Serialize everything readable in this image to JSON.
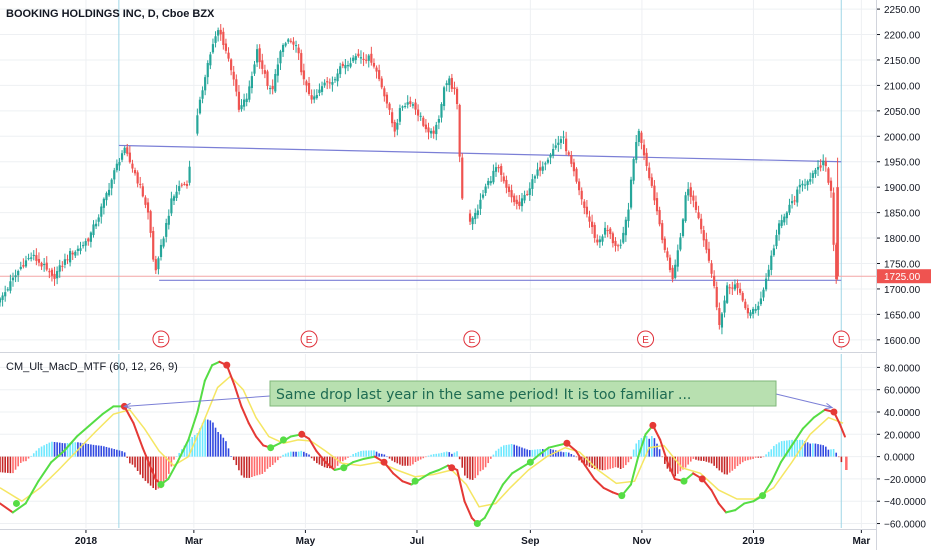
{
  "colors": {
    "up": "#26a69a",
    "down": "#ef5350",
    "grid": "#eef0f3",
    "trendline": "#7b7fd6",
    "macd_line_up": "#55dd44",
    "macd_line_down": "#e53935",
    "signal_line": "#f5e663",
    "hist_pos_light": "#6fe8ff",
    "hist_pos_dark": "#3048e0",
    "hist_neg_dark": "#c62828",
    "hist_neg_light": "#ff6b6b",
    "last_price_bg": "#ef5350",
    "note_bg": "#b8e0b0",
    "note_border": "#7fb77a",
    "earnings": "#e0303a"
  },
  "chart_data": [
    {
      "type": "candlestick",
      "title": "BOOKING HOLDINGS INC, D, Cboe BZX",
      "ylim": [
        1580,
        2260
      ],
      "y_ticks": [
        "2250.00",
        "2200.00",
        "2150.00",
        "2100.00",
        "2050.00",
        "2000.00",
        "1950.00",
        "1900.00",
        "1850.00",
        "1800.00",
        "1750.00",
        "1700.00",
        "1650.00",
        "1600.00"
      ],
      "y_tick_values": [
        2250,
        2200,
        2150,
        2100,
        2050,
        2000,
        1950,
        1900,
        1850,
        1800,
        1750,
        1700,
        1650,
        1600
      ],
      "last_price": "1725.00",
      "last_price_value": 1725,
      "x_labels": [
        "2018",
        "Mar",
        "May",
        "Jul",
        "Sep",
        "Nov",
        "2019",
        "Mar"
      ],
      "x_label_days": [
        0,
        59,
        120,
        181,
        243,
        304,
        365,
        424
      ],
      "x_range_days": [
        -47,
        432
      ],
      "price_path": [
        [
          -47,
          1670
        ],
        [
          -40,
          1710
        ],
        [
          -33,
          1750
        ],
        [
          -28,
          1765
        ],
        [
          -22,
          1745
        ],
        [
          -17,
          1720
        ],
        [
          -12,
          1745
        ],
        [
          -7,
          1770
        ],
        [
          -2,
          1780
        ],
        [
          3,
          1800
        ],
        [
          8,
          1840
        ],
        [
          13,
          1890
        ],
        [
          18,
          1940
        ],
        [
          22,
          1975
        ],
        [
          28,
          1930
        ],
        [
          33,
          1880
        ],
        [
          36,
          1840
        ],
        [
          38,
          1760
        ],
        [
          40,
          1735
        ],
        [
          43,
          1790
        ],
        [
          48,
          1870
        ],
        [
          52,
          1900
        ],
        [
          57,
          1910
        ],
        [
          61,
          2010
        ],
        [
          64,
          2070
        ],
        [
          67,
          2130
        ],
        [
          70,
          2170
        ],
        [
          74,
          2210
        ],
        [
          77,
          2180
        ],
        [
          82,
          2120
        ],
        [
          85,
          2050
        ],
        [
          90,
          2080
        ],
        [
          95,
          2170
        ],
        [
          99,
          2120
        ],
        [
          103,
          2080
        ],
        [
          107,
          2160
        ],
        [
          112,
          2190
        ],
        [
          117,
          2170
        ],
        [
          121,
          2100
        ],
        [
          126,
          2070
        ],
        [
          131,
          2100
        ],
        [
          136,
          2110
        ],
        [
          142,
          2140
        ],
        [
          150,
          2160
        ],
        [
          158,
          2150
        ],
        [
          165,
          2080
        ],
        [
          170,
          2010
        ],
        [
          174,
          2060
        ],
        [
          179,
          2070
        ],
        [
          184,
          2040
        ],
        [
          189,
          2000
        ],
        [
          194,
          2020
        ],
        [
          197,
          2100
        ],
        [
          200,
          2110
        ],
        [
          204,
          2080
        ],
        [
          207,
          1880
        ],
        [
          209,
          1860
        ],
        [
          212,
          1830
        ],
        [
          216,
          1860
        ],
        [
          220,
          1900
        ],
        [
          226,
          1940
        ],
        [
          232,
          1890
        ],
        [
          238,
          1860
        ],
        [
          244,
          1900
        ],
        [
          250,
          1940
        ],
        [
          256,
          1970
        ],
        [
          262,
          2000
        ],
        [
          267,
          1940
        ],
        [
          271,
          1890
        ],
        [
          276,
          1840
        ],
        [
          281,
          1790
        ],
        [
          286,
          1820
        ],
        [
          290,
          1790
        ],
        [
          294,
          1780
        ],
        [
          298,
          1860
        ],
        [
          302,
          1990
        ],
        [
          304,
          2010
        ],
        [
          307,
          1960
        ],
        [
          311,
          1900
        ],
        [
          315,
          1830
        ],
        [
          319,
          1760
        ],
        [
          322,
          1720
        ],
        [
          326,
          1790
        ],
        [
          330,
          1900
        ],
        [
          334,
          1870
        ],
        [
          338,
          1820
        ],
        [
          342,
          1760
        ],
        [
          345,
          1700
        ],
        [
          348,
          1630
        ],
        [
          352,
          1700
        ],
        [
          356,
          1710
        ],
        [
          360,
          1680
        ],
        [
          364,
          1650
        ],
        [
          368,
          1660
        ],
        [
          372,
          1700
        ],
        [
          376,
          1760
        ],
        [
          380,
          1820
        ],
        [
          386,
          1860
        ],
        [
          392,
          1900
        ],
        [
          397,
          1920
        ],
        [
          401,
          1930
        ],
        [
          405,
          1950
        ],
        [
          409,
          1890
        ],
        [
          411,
          1725
        ]
      ],
      "gap_after_day": [
        57,
        207
      ],
      "earnings_markers": [
        "E",
        "E",
        "E",
        "E",
        "E"
      ],
      "earnings_days": [
        41,
        122,
        211,
        306,
        413
      ],
      "trendlines": [
        {
          "from": [
            18,
            1982
          ],
          "to": [
            413,
            1950
          ]
        },
        {
          "from": [
            40,
            1717
          ],
          "to": [
            413,
            1717
          ]
        }
      ],
      "vertical_markers_days": [
        18,
        413
      ]
    },
    {
      "type": "line",
      "title": "CM_Ult_MacD_MTF (60, 12, 26, 9)",
      "ylim": [
        -64,
        92
      ],
      "y_ticks": [
        "80.0000",
        "60.0000",
        "40.0000",
        "20.0000",
        "0.0000",
        "−20.0000",
        "−40.0000",
        "−60.0000"
      ],
      "y_tick_values": [
        80,
        60,
        40,
        20,
        0,
        -20,
        -40,
        -60
      ],
      "last_value_tag": "-",
      "macd_path": [
        [
          -47,
          -42
        ],
        [
          -40,
          -50
        ],
        [
          -33,
          -42
        ],
        [
          -26,
          -22
        ],
        [
          -19,
          -5
        ],
        [
          -12,
          5
        ],
        [
          -5,
          18
        ],
        [
          2,
          28
        ],
        [
          9,
          38
        ],
        [
          15,
          45
        ],
        [
          21,
          45
        ],
        [
          26,
          30
        ],
        [
          31,
          8
        ],
        [
          35,
          -8
        ],
        [
          38,
          -20
        ],
        [
          41,
          -25
        ],
        [
          45,
          -20
        ],
        [
          50,
          -5
        ],
        [
          56,
          15
        ],
        [
          61,
          40
        ],
        [
          65,
          68
        ],
        [
          69,
          82
        ],
        [
          73,
          85
        ],
        [
          77,
          82
        ],
        [
          81,
          65
        ],
        [
          85,
          45
        ],
        [
          89,
          30
        ],
        [
          93,
          18
        ],
        [
          97,
          10
        ],
        [
          101,
          8
        ],
        [
          106,
          12
        ],
        [
          112,
          18
        ],
        [
          118,
          20
        ],
        [
          122,
          16
        ],
        [
          126,
          5
        ],
        [
          131,
          -5
        ],
        [
          136,
          -12
        ],
        [
          141,
          -10
        ],
        [
          146,
          -5
        ],
        [
          152,
          -2
        ],
        [
          158,
          0
        ],
        [
          163,
          -5
        ],
        [
          168,
          -15
        ],
        [
          173,
          -22
        ],
        [
          178,
          -25
        ],
        [
          183,
          -20
        ],
        [
          188,
          -15
        ],
        [
          193,
          -12
        ],
        [
          198,
          -8
        ],
        [
          203,
          -12
        ],
        [
          207,
          -40
        ],
        [
          211,
          -55
        ],
        [
          214,
          -60
        ],
        [
          218,
          -55
        ],
        [
          223,
          -40
        ],
        [
          228,
          -25
        ],
        [
          233,
          -15
        ],
        [
          238,
          -10
        ],
        [
          243,
          -5
        ],
        [
          248,
          2
        ],
        [
          253,
          8
        ],
        [
          258,
          10
        ],
        [
          263,
          12
        ],
        [
          268,
          5
        ],
        [
          273,
          -8
        ],
        [
          278,
          -20
        ],
        [
          283,
          -28
        ],
        [
          288,
          -32
        ],
        [
          293,
          -35
        ],
        [
          298,
          -25
        ],
        [
          302,
          0
        ],
        [
          306,
          20
        ],
        [
          310,
          28
        ],
        [
          314,
          15
        ],
        [
          318,
          -5
        ],
        [
          322,
          -20
        ],
        [
          327,
          -22
        ],
        [
          332,
          -15
        ],
        [
          337,
          -20
        ],
        [
          342,
          -30
        ],
        [
          346,
          -42
        ],
        [
          350,
          -50
        ],
        [
          355,
          -48
        ],
        [
          360,
          -42
        ],
        [
          365,
          -40
        ],
        [
          370,
          -35
        ],
        [
          375,
          -22
        ],
        [
          380,
          -5
        ],
        [
          386,
          10
        ],
        [
          392,
          25
        ],
        [
          398,
          35
        ],
        [
          404,
          42
        ],
        [
          409,
          40
        ],
        [
          412,
          30
        ],
        [
          415,
          18
        ]
      ],
      "signal_path": [
        [
          -47,
          -28
        ],
        [
          -35,
          -40
        ],
        [
          -25,
          -28
        ],
        [
          -15,
          -12
        ],
        [
          -5,
          5
        ],
        [
          5,
          22
        ],
        [
          15,
          38
        ],
        [
          24,
          42
        ],
        [
          32,
          25
        ],
        [
          40,
          5
        ],
        [
          48,
          -8
        ],
        [
          56,
          0
        ],
        [
          64,
          30
        ],
        [
          72,
          62
        ],
        [
          79,
          72
        ],
        [
          86,
          60
        ],
        [
          93,
          35
        ],
        [
          100,
          18
        ],
        [
          108,
          12
        ],
        [
          116,
          15
        ],
        [
          123,
          14
        ],
        [
          131,
          5
        ],
        [
          140,
          -6
        ],
        [
          150,
          -8
        ],
        [
          160,
          -5
        ],
        [
          170,
          -12
        ],
        [
          180,
          -18
        ],
        [
          190,
          -16
        ],
        [
          200,
          -12
        ],
        [
          208,
          -25
        ],
        [
          215,
          -45
        ],
        [
          224,
          -42
        ],
        [
          232,
          -28
        ],
        [
          242,
          -12
        ],
        [
          252,
          0
        ],
        [
          262,
          8
        ],
        [
          270,
          4
        ],
        [
          280,
          -12
        ],
        [
          290,
          -24
        ],
        [
          300,
          -22
        ],
        [
          308,
          8
        ],
        [
          316,
          10
        ],
        [
          326,
          -10
        ],
        [
          336,
          -15
        ],
        [
          346,
          -30
        ],
        [
          356,
          -38
        ],
        [
          366,
          -38
        ],
        [
          376,
          -28
        ],
        [
          386,
          -5
        ],
        [
          396,
          20
        ],
        [
          406,
          35
        ],
        [
          414,
          30
        ]
      ],
      "histogram_days_from": -47,
      "histogram_days_to": 414,
      "dots": [
        {
          "d": -38,
          "v": -42,
          "c": "up"
        },
        {
          "d": 21,
          "v": 45,
          "c": "down"
        },
        {
          "d": 41,
          "v": -25,
          "c": "up"
        },
        {
          "d": 77,
          "v": 82,
          "c": "down"
        },
        {
          "d": 101,
          "v": 8,
          "c": "up"
        },
        {
          "d": 108,
          "v": 15,
          "c": "up"
        },
        {
          "d": 118,
          "v": 20,
          "c": "down"
        },
        {
          "d": 141,
          "v": -10,
          "c": "up"
        },
        {
          "d": 163,
          "v": -5,
          "c": "down"
        },
        {
          "d": 180,
          "v": -22,
          "c": "up"
        },
        {
          "d": 200,
          "v": -10,
          "c": "down"
        },
        {
          "d": 214,
          "v": -60,
          "c": "up"
        },
        {
          "d": 243,
          "v": -5,
          "c": "up"
        },
        {
          "d": 263,
          "v": 12,
          "c": "down"
        },
        {
          "d": 293,
          "v": -35,
          "c": "up"
        },
        {
          "d": 310,
          "v": 28,
          "c": "down"
        },
        {
          "d": 327,
          "v": -22,
          "c": "up"
        },
        {
          "d": 337,
          "v": -20,
          "c": "down"
        },
        {
          "d": 370,
          "v": -35,
          "c": "up"
        },
        {
          "d": 409,
          "v": 40,
          "c": "down"
        }
      ],
      "annotation": {
        "text": "Same drop last year in the same period! It is too familiar ...",
        "arrow_to_days": [
          21,
          408
        ],
        "arrow_to_values": [
          45,
          44
        ]
      }
    }
  ]
}
